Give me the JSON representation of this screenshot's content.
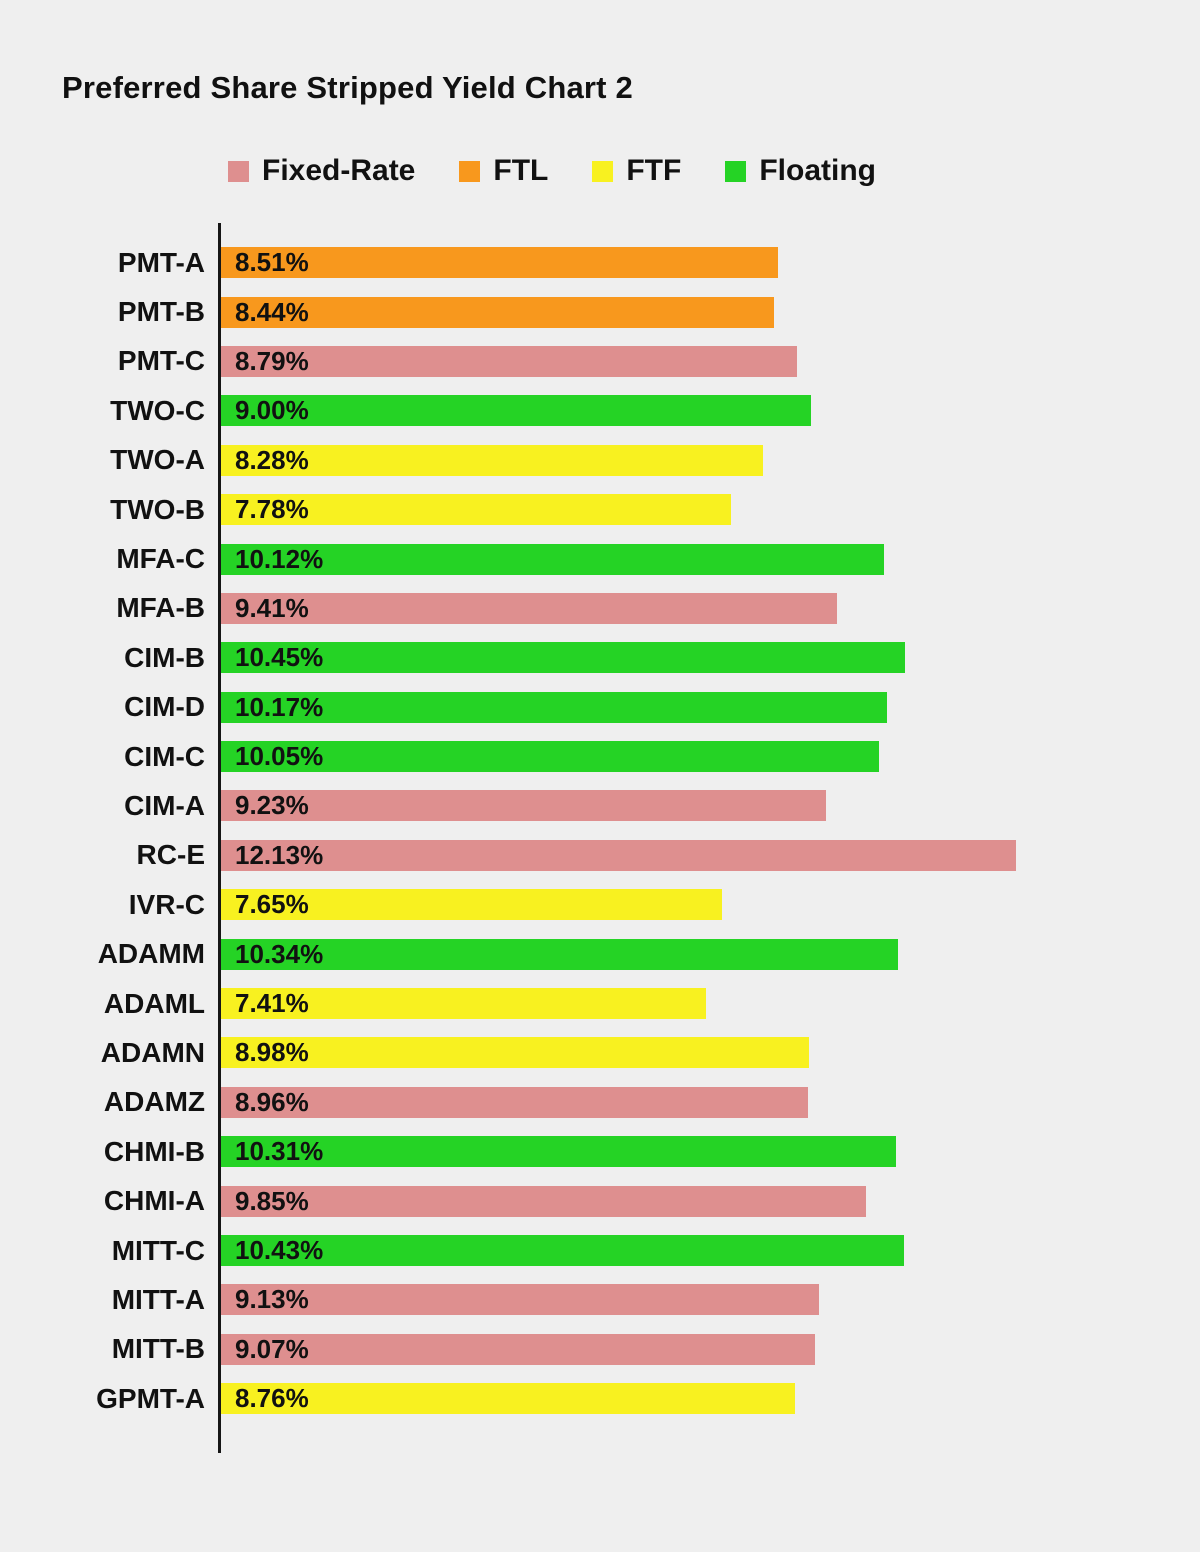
{
  "title": "Preferred Share Stripped Yield Chart 2",
  "legend": [
    {
      "label": "Fixed-Rate",
      "color": "#de8f8f"
    },
    {
      "label": "FTL",
      "color": "#f8981d"
    },
    {
      "label": "FTF",
      "color": "#f8f120"
    },
    {
      "label": "Floating",
      "color": "#25d325"
    }
  ],
  "chart_data": {
    "type": "bar",
    "orientation": "horizontal",
    "title": "Preferred Share Stripped Yield Chart 2",
    "xlabel": "",
    "ylabel": "",
    "xlim": [
      0,
      12.5
    ],
    "grid": false,
    "legend_position": "top",
    "background": "#efefef",
    "categories": [
      "PMT-A",
      "PMT-B",
      "PMT-C",
      "TWO-C",
      "TWO-A",
      "TWO-B",
      "MFA-C",
      "MFA-B",
      "CIM-B",
      "CIM-D",
      "CIM-C",
      "CIM-A",
      "RC-E",
      "IVR-C",
      "ADAMM",
      "ADAML",
      "ADAMN",
      "ADAMZ",
      "CHMI-B",
      "CHMI-A",
      "MITT-C",
      "MITT-A",
      "MITT-B",
      "GPMT-A"
    ],
    "values": [
      8.51,
      8.44,
      8.79,
      9.0,
      8.28,
      7.78,
      10.12,
      9.41,
      10.45,
      10.17,
      10.05,
      9.23,
      12.13,
      7.65,
      10.34,
      7.41,
      8.98,
      8.96,
      10.31,
      9.85,
      10.43,
      9.13,
      9.07,
      8.76
    ],
    "value_labels": [
      "8.51%",
      "8.44%",
      "8.79%",
      "9.00%",
      "8.28%",
      "7.78%",
      "10.12%",
      "9.41%",
      "10.45%",
      "10.17%",
      "10.05%",
      "9.23%",
      "12.13%",
      "7.65%",
      "10.34%",
      "7.41%",
      "8.98%",
      "8.96%",
      "10.31%",
      "9.85%",
      "10.43%",
      "9.13%",
      "9.07%",
      "8.76%"
    ],
    "series_type": [
      "FTL",
      "FTL",
      "Fixed-Rate",
      "Floating",
      "FTF",
      "FTF",
      "Floating",
      "Fixed-Rate",
      "Floating",
      "Floating",
      "Floating",
      "Fixed-Rate",
      "Fixed-Rate",
      "FTF",
      "Floating",
      "FTF",
      "FTF",
      "Fixed-Rate",
      "Floating",
      "Fixed-Rate",
      "Floating",
      "Fixed-Rate",
      "Fixed-Rate",
      "FTF"
    ],
    "colors": {
      "Fixed-Rate": "#de8f8f",
      "FTL": "#f8981d",
      "FTF": "#f8f120",
      "Floating": "#25d325"
    }
  }
}
